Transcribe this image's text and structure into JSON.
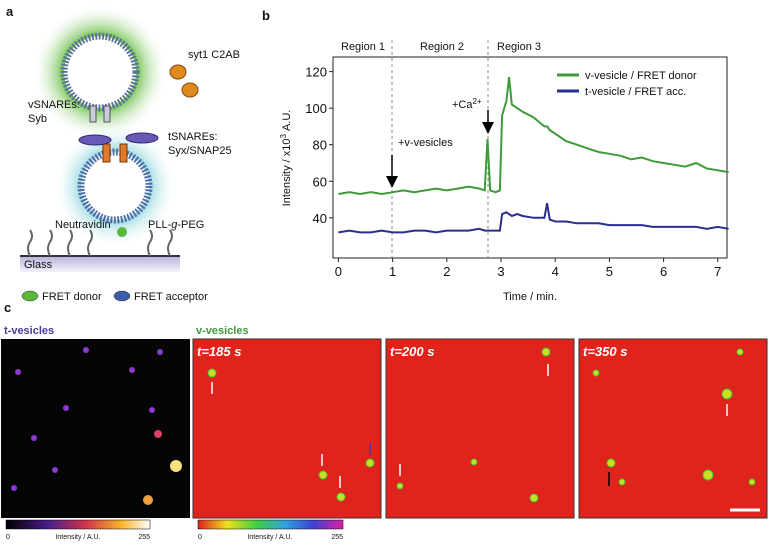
{
  "panel_labels": [
    "a",
    "b",
    "c"
  ],
  "schematic": {
    "syt": "syt1 C2AB",
    "vsnare": {
      "title": "vSNAREs:",
      "name": "Syb"
    },
    "tsnare": {
      "title": "tSNAREs:",
      "name": "Syx/SNAP25"
    },
    "neutravidin": "Neutravidin",
    "peg": {
      "pre": "PLL-",
      "italic": "g",
      "post": "-PEG"
    },
    "glass": "Glass",
    "legend": [
      {
        "name": "FRET donor",
        "color": "#5cb83a"
      },
      {
        "name": "FRET acceptor",
        "color": "#3a5ca8"
      }
    ]
  },
  "chart_data": {
    "type": "line",
    "region_labels": [
      "Region 1",
      "Region 2",
      "Region 3"
    ],
    "annotations": {
      "v_vesicles": "+v-vesicles",
      "calcium": {
        "text": "+Ca",
        "sup": "2+"
      }
    },
    "y_label": {
      "text": "Intensity / x10",
      "sup": "3",
      "unit": "A.U."
    },
    "x_label": "Time / min.",
    "xlim": [
      -0.1,
      7.17
    ],
    "ylim": [
      18,
      128
    ],
    "xticks": [
      0,
      1,
      2,
      3,
      4,
      5,
      6,
      7
    ],
    "yticks": [
      40,
      60,
      80,
      100,
      120
    ],
    "grid": false,
    "legend": "upper right",
    "x": [
      0,
      0.2,
      0.4,
      0.6,
      0.8,
      1.0,
      1.2,
      1.4,
      1.6,
      1.8,
      2.0,
      2.2,
      2.4,
      2.6,
      2.7,
      2.75,
      2.8,
      2.9,
      2.98,
      3.02,
      3.1,
      3.15,
      3.2,
      3.3,
      3.4,
      3.6,
      3.8,
      3.85,
      3.9,
      4.0,
      4.2,
      4.4,
      4.6,
      4.8,
      5.0,
      5.2,
      5.4,
      5.6,
      5.8,
      6.0,
      6.2,
      6.4,
      6.6,
      6.8,
      7.0,
      7.2
    ],
    "series": [
      {
        "name": "v-vesicle / FRET donor",
        "color": "#3f9a3a",
        "values": [
          53,
          54,
          53,
          54,
          53,
          54,
          55,
          54,
          55,
          56,
          55,
          56,
          57,
          56,
          55,
          83,
          55,
          54,
          55,
          96,
          104,
          117,
          102,
          100,
          98,
          95,
          90,
          90,
          88,
          86,
          82,
          80,
          78,
          76,
          75,
          74,
          72,
          73,
          71,
          70,
          69,
          68,
          70,
          67,
          66,
          65
        ]
      },
      {
        "name": "t-vesicle / FRET acc.",
        "color": "#2a2f8f",
        "values": [
          32,
          33,
          32,
          32,
          33,
          32,
          32,
          33,
          33,
          32,
          33,
          33,
          33,
          34,
          33,
          33,
          33,
          33,
          33,
          42,
          43,
          42,
          41,
          42,
          41,
          40,
          40,
          48,
          39,
          38,
          38,
          37,
          37,
          37,
          36,
          36,
          36,
          36,
          35,
          35,
          35,
          35,
          35,
          34,
          35,
          34
        ]
      }
    ]
  },
  "images": {
    "left_title": "t-vesicles",
    "right_title": "v-vesicles",
    "frames": [
      "t=185 s",
      "t=200 s",
      "t=350 s"
    ],
    "colorbars": [
      {
        "min": 0,
        "label": "Intensity / A.U.",
        "max": 255
      },
      {
        "min": 0,
        "label": "Intensity / A.U.",
        "max": 255
      }
    ]
  }
}
